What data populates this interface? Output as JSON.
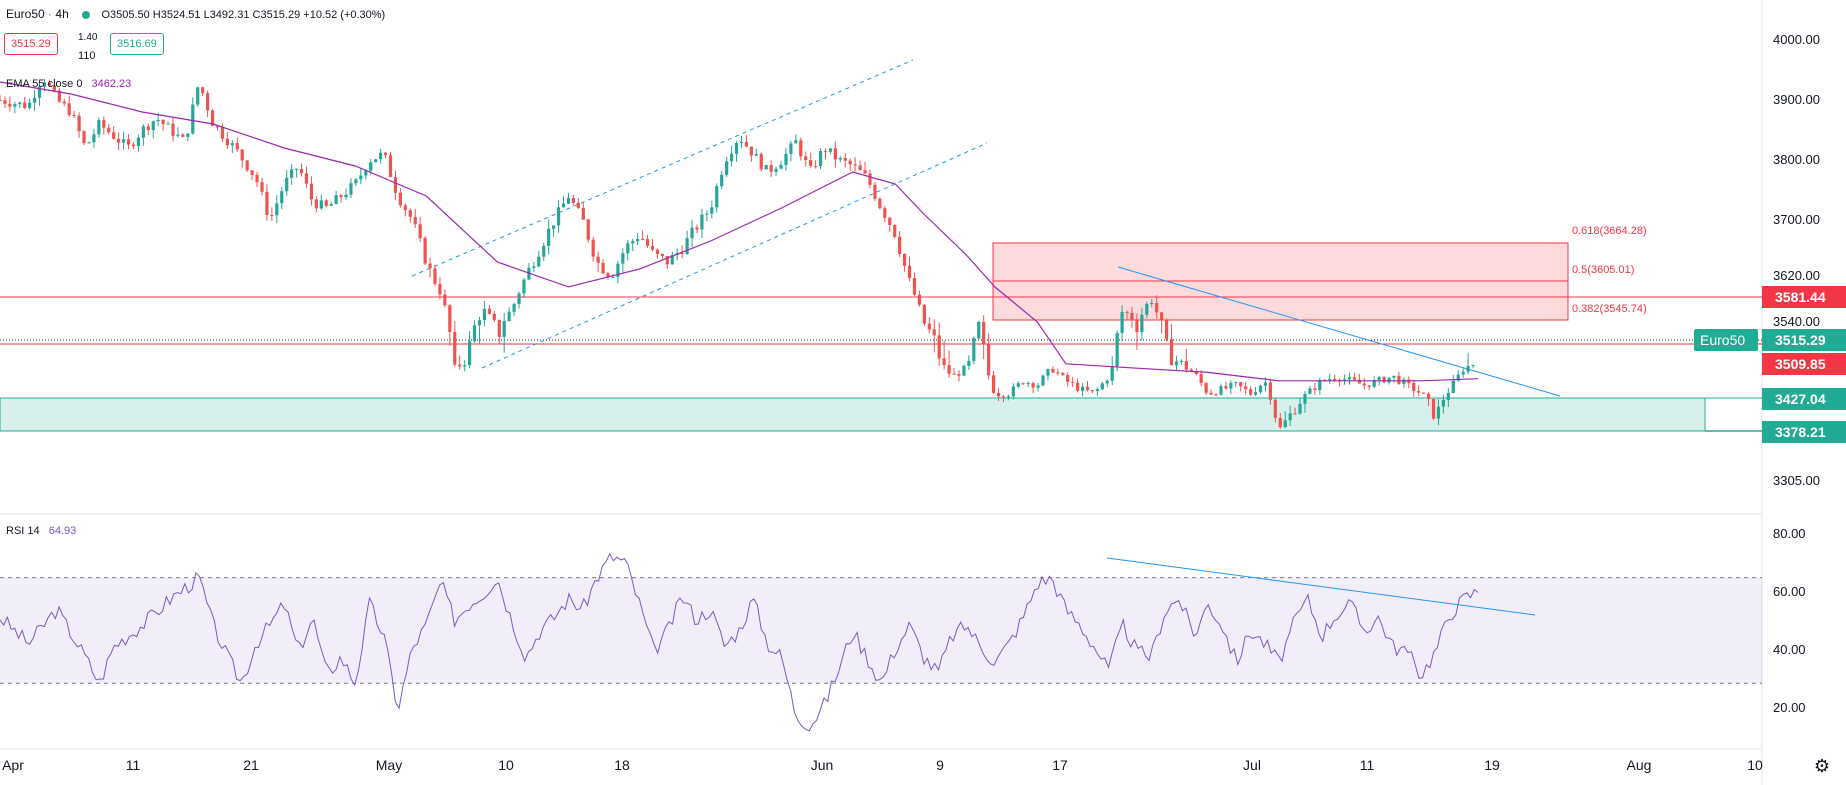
{
  "header": {
    "symbol": "Euro50",
    "interval": "4h",
    "ohlc_text": "O3505.50 H3524.51 L3492.31 C3515.29 +10.52 (+0.30%)",
    "bid": "3515.29",
    "spread": "1.40",
    "spread2": "110",
    "ask": "3516.69",
    "ema_label": "EMA 55 close 0",
    "ema_value": "3462.23",
    "rsi_label": "RSI 14",
    "rsi_value": "64.93"
  },
  "colors": {
    "up": "#26a69a",
    "down": "#ef5350",
    "ema": "#9c27b0",
    "trend": "#2196f3",
    "resistance": "#f23645",
    "support": "#22ab94",
    "rsi": "#7e57c2",
    "axis_text": "#131722",
    "grid": "#e0e3eb"
  },
  "chart_data": [
    {
      "type": "candlestick",
      "title": "Euro50 · 4h",
      "y_ticks": [
        3305,
        3378.21,
        3427.04,
        3509.85,
        3540,
        3581.44,
        3620,
        3700,
        3800,
        3900,
        4000
      ],
      "y_tick_labels": [
        "3305.00",
        "3540.00",
        "3620.00",
        "3700.00",
        "3800.00",
        "3900.00",
        "4000.00"
      ],
      "x_tick_labels": [
        "Apr",
        "11",
        "21",
        "May",
        "10",
        "18",
        "Jun",
        "9",
        "17",
        "Jul",
        "11",
        "19",
        "Aug",
        "10"
      ],
      "price_levels": [
        {
          "name": "resistance",
          "value": 3581.44,
          "label": "3581.44"
        },
        {
          "name": "support-high",
          "value": 3509.85,
          "label": "3509.85"
        },
        {
          "name": "demand-top",
          "value": 3427.04,
          "label": "3427.04"
        },
        {
          "name": "demand-bottom",
          "value": 3378.21,
          "label": "3378.21"
        }
      ],
      "last_price": {
        "label": "Euro50",
        "value": "3515.29"
      },
      "fib_levels": [
        {
          "ratio": "0.382",
          "value": "3545.74"
        },
        {
          "ratio": "0.5",
          "value": "3605.01"
        },
        {
          "ratio": "0.618",
          "value": "3664.28"
        }
      ],
      "close_path": [
        [
          0,
          3900
        ],
        [
          4,
          3890
        ],
        [
          6,
          3940
        ],
        [
          8,
          3900
        ],
        [
          10,
          3880
        ],
        [
          12,
          3820
        ],
        [
          14,
          3860
        ],
        [
          16,
          3840
        ],
        [
          18,
          3820
        ],
        [
          20,
          3850
        ],
        [
          22,
          3870
        ],
        [
          24,
          3850
        ],
        [
          26,
          3830
        ],
        [
          28,
          3930
        ],
        [
          30,
          3860
        ],
        [
          33,
          3820
        ],
        [
          36,
          3770
        ],
        [
          38,
          3700
        ],
        [
          40,
          3760
        ],
        [
          42,
          3790
        ],
        [
          44,
          3730
        ],
        [
          46,
          3720
        ],
        [
          48,
          3740
        ],
        [
          50,
          3760
        ],
        [
          52,
          3800
        ],
        [
          54,
          3810
        ],
        [
          56,
          3740
        ],
        [
          58,
          3700
        ],
        [
          60,
          3640
        ],
        [
          62,
          3590
        ],
        [
          64,
          3500
        ],
        [
          66,
          3520
        ],
        [
          68,
          3560
        ],
        [
          70,
          3530
        ],
        [
          72,
          3560
        ],
        [
          74,
          3620
        ],
        [
          76,
          3660
        ],
        [
          78,
          3700
        ],
        [
          80,
          3740
        ],
        [
          82,
          3700
        ],
        [
          84,
          3640
        ],
        [
          86,
          3620
        ],
        [
          88,
          3660
        ],
        [
          90,
          3680
        ],
        [
          92,
          3650
        ],
        [
          94,
          3640
        ],
        [
          96,
          3660
        ],
        [
          98,
          3690
        ],
        [
          100,
          3720
        ],
        [
          102,
          3800
        ],
        [
          104,
          3840
        ],
        [
          106,
          3810
        ],
        [
          108,
          3780
        ],
        [
          110,
          3800
        ],
        [
          112,
          3830
        ],
        [
          114,
          3780
        ],
        [
          116,
          3820
        ],
        [
          118,
          3800
        ],
        [
          120,
          3790
        ],
        [
          122,
          3770
        ],
        [
          124,
          3720
        ],
        [
          126,
          3680
        ],
        [
          128,
          3610
        ],
        [
          130,
          3540
        ],
        [
          132,
          3520
        ],
        [
          134,
          3480
        ],
        [
          136,
          3500
        ],
        [
          138,
          3540
        ],
        [
          140,
          3440
        ],
        [
          142,
          3440
        ],
        [
          144,
          3470
        ],
        [
          146,
          3460
        ],
        [
          148,
          3500
        ],
        [
          150,
          3470
        ],
        [
          152,
          3450
        ],
        [
          154,
          3440
        ],
        [
          156,
          3480
        ],
        [
          158,
          3560
        ],
        [
          160,
          3540
        ],
        [
          162,
          3580
        ],
        [
          164,
          3520
        ],
        [
          166,
          3510
        ],
        [
          168,
          3490
        ],
        [
          170,
          3440
        ],
        [
          172,
          3450
        ],
        [
          174,
          3460
        ],
        [
          176,
          3440
        ],
        [
          178,
          3470
        ],
        [
          180,
          3380
        ],
        [
          182,
          3410
        ],
        [
          184,
          3440
        ],
        [
          186,
          3470
        ],
        [
          188,
          3480
        ],
        [
          190,
          3470
        ],
        [
          192,
          3460
        ],
        [
          194,
          3470
        ],
        [
          196,
          3480
        ],
        [
          198,
          3460
        ],
        [
          200,
          3440
        ],
        [
          202,
          3400
        ],
        [
          204,
          3450
        ],
        [
          206,
          3500
        ],
        [
          208,
          3515
        ]
      ],
      "close_path_x_unit": "4h bar index",
      "ema_path": [
        [
          0,
          3930
        ],
        [
          10,
          3910
        ],
        [
          20,
          3880
        ],
        [
          30,
          3860
        ],
        [
          40,
          3820
        ],
        [
          50,
          3790
        ],
        [
          60,
          3740
        ],
        [
          70,
          3640
        ],
        [
          80,
          3600
        ],
        [
          90,
          3630
        ],
        [
          100,
          3670
        ],
        [
          110,
          3720
        ],
        [
          120,
          3780
        ],
        [
          126,
          3760
        ],
        [
          130,
          3710
        ],
        [
          136,
          3650
        ],
        [
          140,
          3600
        ],
        [
          146,
          3540
        ],
        [
          150,
          3510
        ],
        [
          160,
          3500
        ],
        [
          170,
          3490
        ],
        [
          180,
          3470
        ],
        [
          190,
          3470
        ],
        [
          200,
          3470
        ],
        [
          208,
          3475
        ]
      ],
      "trendlines": [
        {
          "name": "channel-upper",
          "points": [
            [
              46,
              3640
            ],
            [
              102,
              3960
            ]
          ]
        },
        {
          "name": "channel-lower",
          "points": [
            [
              54,
              3500
            ],
            [
              110,
              3820
            ]
          ]
        },
        {
          "name": "descending-resistance",
          "points": [
            [
              156,
              3630
            ],
            [
              206,
              3440
            ]
          ]
        }
      ]
    },
    {
      "type": "line",
      "title": "RSI 14",
      "y_tick_labels": [
        "20.00",
        "40.00",
        "60.00",
        "80.00"
      ],
      "ylim": [
        10,
        85
      ],
      "band": [
        30,
        70
      ],
      "values": [
        [
          0,
          55
        ],
        [
          4,
          45
        ],
        [
          8,
          58
        ],
        [
          12,
          40
        ],
        [
          14,
          30
        ],
        [
          16,
          44
        ],
        [
          20,
          52
        ],
        [
          24,
          62
        ],
        [
          28,
          70
        ],
        [
          30,
          52
        ],
        [
          32,
          40
        ],
        [
          34,
          30
        ],
        [
          36,
          45
        ],
        [
          38,
          52
        ],
        [
          40,
          60
        ],
        [
          42,
          42
        ],
        [
          44,
          55
        ],
        [
          46,
          33
        ],
        [
          48,
          40
        ],
        [
          50,
          30
        ],
        [
          52,
          60
        ],
        [
          54,
          48
        ],
        [
          56,
          20
        ],
        [
          58,
          43
        ],
        [
          60,
          52
        ],
        [
          62,
          68
        ],
        [
          64,
          54
        ],
        [
          66,
          60
        ],
        [
          68,
          64
        ],
        [
          70,
          70
        ],
        [
          72,
          54
        ],
        [
          74,
          40
        ],
        [
          76,
          50
        ],
        [
          78,
          55
        ],
        [
          80,
          62
        ],
        [
          82,
          58
        ],
        [
          84,
          70
        ],
        [
          86,
          78
        ],
        [
          88,
          76
        ],
        [
          90,
          60
        ],
        [
          92,
          42
        ],
        [
          94,
          50
        ],
        [
          96,
          63
        ],
        [
          98,
          54
        ],
        [
          100,
          58
        ],
        [
          102,
          44
        ],
        [
          104,
          50
        ],
        [
          106,
          62
        ],
        [
          108,
          45
        ],
        [
          110,
          40
        ],
        [
          112,
          18
        ],
        [
          114,
          14
        ],
        [
          116,
          22
        ],
        [
          118,
          35
        ],
        [
          120,
          50
        ],
        [
          122,
          40
        ],
        [
          124,
          30
        ],
        [
          126,
          43
        ],
        [
          128,
          52
        ],
        [
          130,
          40
        ],
        [
          132,
          34
        ],
        [
          134,
          48
        ],
        [
          136,
          52
        ],
        [
          138,
          44
        ],
        [
          140,
          38
        ],
        [
          142,
          45
        ],
        [
          144,
          55
        ],
        [
          146,
          68
        ],
        [
          148,
          70
        ],
        [
          150,
          58
        ],
        [
          152,
          52
        ],
        [
          154,
          44
        ],
        [
          156,
          35
        ],
        [
          158,
          52
        ],
        [
          160,
          42
        ],
        [
          162,
          40
        ],
        [
          164,
          58
        ],
        [
          166,
          62
        ],
        [
          168,
          48
        ],
        [
          170,
          60
        ],
        [
          172,
          52
        ],
        [
          174,
          38
        ],
        [
          176,
          50
        ],
        [
          178,
          45
        ],
        [
          180,
          38
        ],
        [
          182,
          52
        ],
        [
          184,
          62
        ],
        [
          186,
          48
        ],
        [
          188,
          56
        ],
        [
          190,
          60
        ],
        [
          192,
          50
        ],
        [
          194,
          55
        ],
        [
          196,
          44
        ],
        [
          198,
          42
        ],
        [
          200,
          33
        ],
        [
          202,
          42
        ],
        [
          204,
          56
        ],
        [
          206,
          62
        ],
        [
          208,
          65
        ]
      ],
      "trendline": [
        [
          148,
          72
        ],
        [
          200,
          51
        ]
      ]
    }
  ]
}
